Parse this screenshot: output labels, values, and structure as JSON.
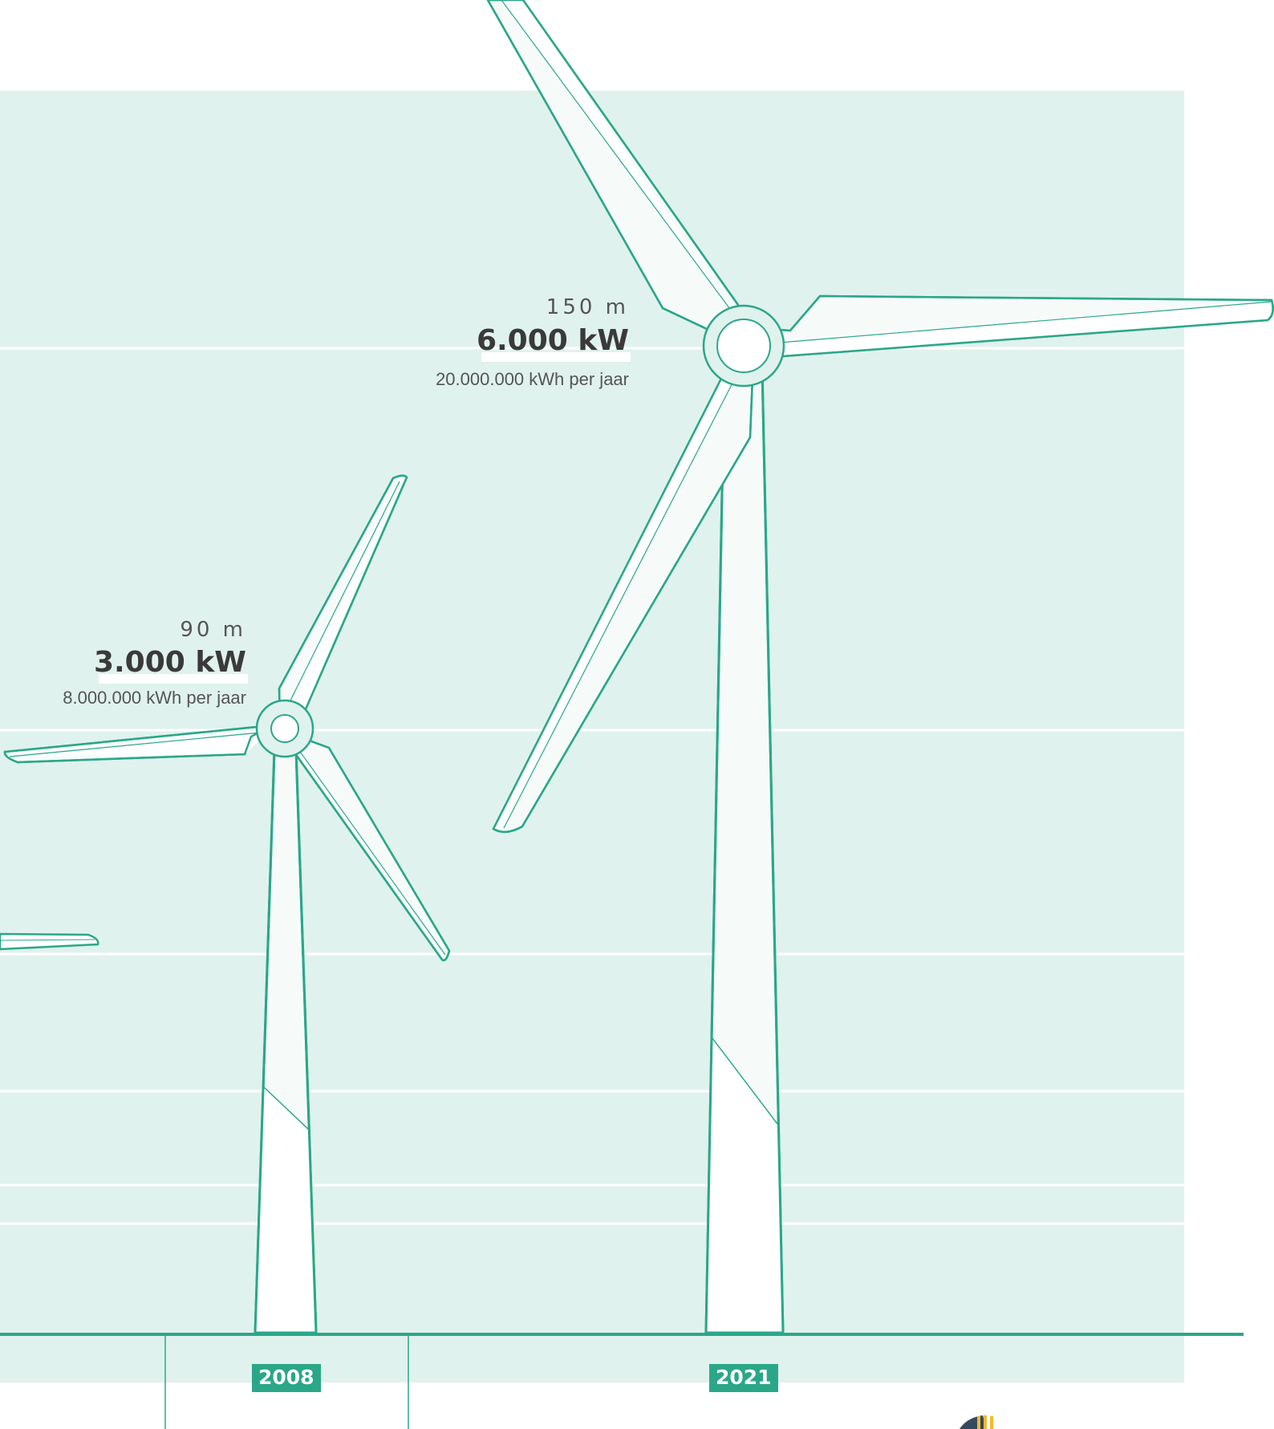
{
  "colors": {
    "accent": "#2aa789",
    "panel": "#e0f2ed",
    "grid": "#ffffff",
    "turbine_fill": "#ffffff",
    "text_dark": "#3a3a3a"
  },
  "turbines": [
    {
      "year": "2008",
      "height": "90  m",
      "power": "3.000 kW",
      "energy": "8.000.000 kWh per jaar"
    },
    {
      "year": "2021",
      "height": "150  m",
      "power": "6.000 kW",
      "energy": "20.000.000 kWh per jaar"
    }
  ]
}
